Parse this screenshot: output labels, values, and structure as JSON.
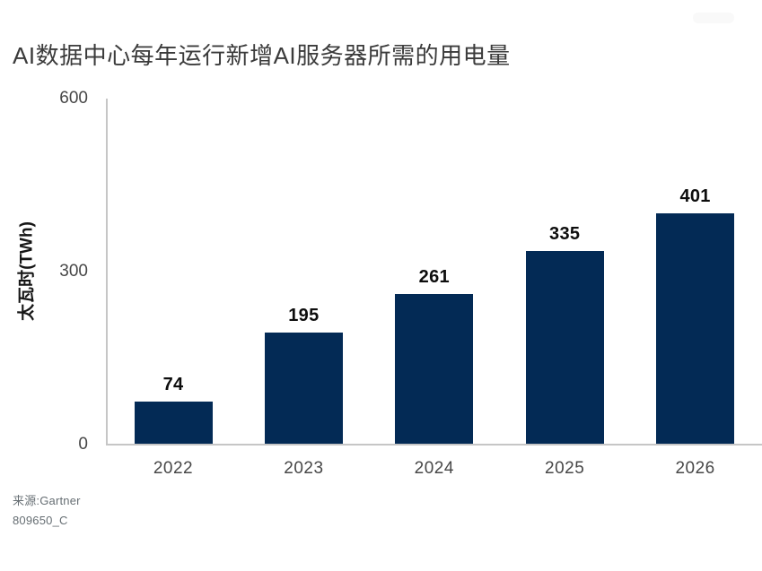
{
  "chart_data": {
    "type": "bar",
    "title": "AI数据中心每年运行新增AI服务器所需的用电量",
    "categories": [
      "2022",
      "2023",
      "2024",
      "2025",
      "2026"
    ],
    "values": [
      74,
      195,
      261,
      335,
      401
    ],
    "xlabel": "",
    "ylabel": "太瓦时(TWh)",
    "ylim": [
      0,
      600
    ],
    "yticks": [
      0,
      300,
      600
    ],
    "grid": false,
    "legend": "none",
    "value_labels_shown": true
  },
  "source": {
    "line1": "来源:Gartner",
    "line2": "809650_C"
  },
  "colors": {
    "bar": "#032a55",
    "axis": "#c6c6c6",
    "title_text": "#3b3b3b",
    "tick_text": "#474747",
    "value_text": "#0d0d0d",
    "source_text": "#666e73"
  }
}
